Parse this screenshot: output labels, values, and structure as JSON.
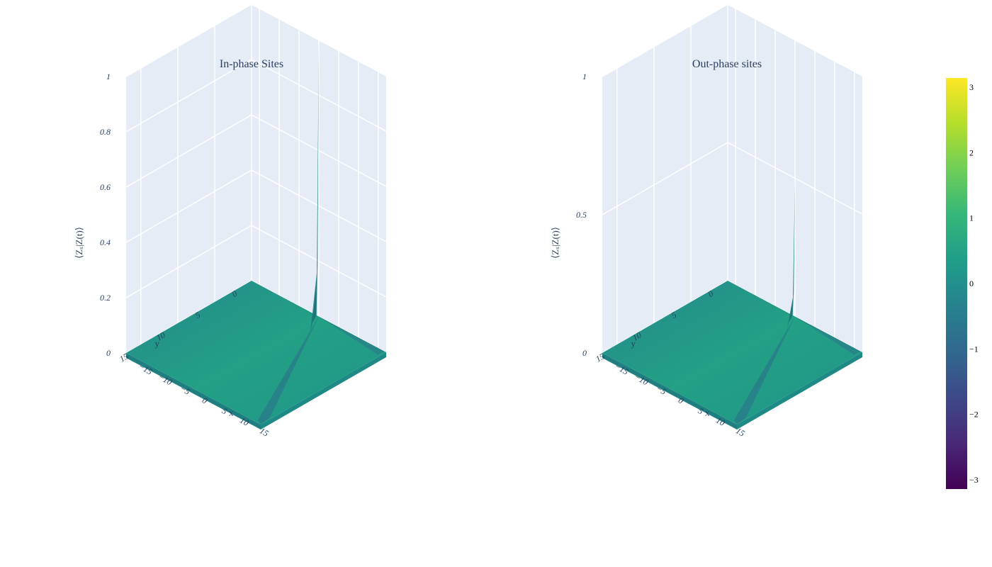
{
  "chart_data": [
    {
      "type": "surface",
      "title": "In-phase Sites",
      "xlabel": "x",
      "ylabel": "y",
      "zlabel": "⟨Zₓ|Z(t)⟩",
      "x_range": [
        -17,
        17
      ],
      "y_range": [
        0,
        17
      ],
      "z_range": [
        0,
        1
      ],
      "x_ticks": [
        "−15",
        "−10",
        "−5",
        "0",
        "5",
        "10",
        "15"
      ],
      "x_tick_values": [
        -15,
        -10,
        -5,
        0,
        5,
        10,
        15
      ],
      "y_ticks": [
        "0",
        "5",
        "10",
        "15"
      ],
      "y_tick_values": [
        0,
        5,
        10,
        15
      ],
      "z_ticks": [
        "0",
        "0.2",
        "0.4",
        "0.6",
        "0.8",
        "1"
      ],
      "z_tick_values": [
        0,
        0.2,
        0.4,
        0.6,
        0.8,
        1
      ],
      "peak": {
        "x": 0,
        "y": 0,
        "z": 1.0
      },
      "colorscale": "viridis"
    },
    {
      "type": "surface",
      "title": "Out-phase sites",
      "xlabel": "x",
      "ylabel": "y",
      "zlabel": "⟨Zₓ|Z(t)⟩",
      "x_range": [
        -17,
        17
      ],
      "y_range": [
        0,
        17
      ],
      "z_range": [
        0,
        1
      ],
      "x_ticks": [
        "−15",
        "−10",
        "−5",
        "0",
        "5",
        "10",
        "15"
      ],
      "x_tick_values": [
        -15,
        -10,
        -5,
        0,
        5,
        10,
        15
      ],
      "y_ticks": [
        "0",
        "5",
        "10",
        "15"
      ],
      "y_tick_values": [
        0,
        5,
        10,
        15
      ],
      "z_ticks": [
        "0",
        "0.5",
        "1"
      ],
      "z_tick_values": [
        0,
        0.5,
        1
      ],
      "peak": {
        "x": 0,
        "y": 0,
        "z": 0.5
      },
      "colorscale": "viridis"
    }
  ],
  "colorbar": {
    "ticks": [
      "3",
      "2",
      "1",
      "0",
      "−1",
      "−2",
      "−3"
    ],
    "tick_values": [
      3,
      2,
      1,
      0,
      -1,
      -2,
      -3
    ],
    "range": [
      -3.14,
      3.14
    ]
  },
  "colors": {
    "pane": "#e5ecf6",
    "grid": "#ffffff",
    "surface": "#26928c",
    "surface_dark": "#2c6e8a",
    "viridis": [
      "#440154",
      "#482878",
      "#3e4989",
      "#31688e",
      "#26828e",
      "#1f9e89",
      "#35b779",
      "#6ece58",
      "#b5de2b",
      "#fde725"
    ]
  }
}
